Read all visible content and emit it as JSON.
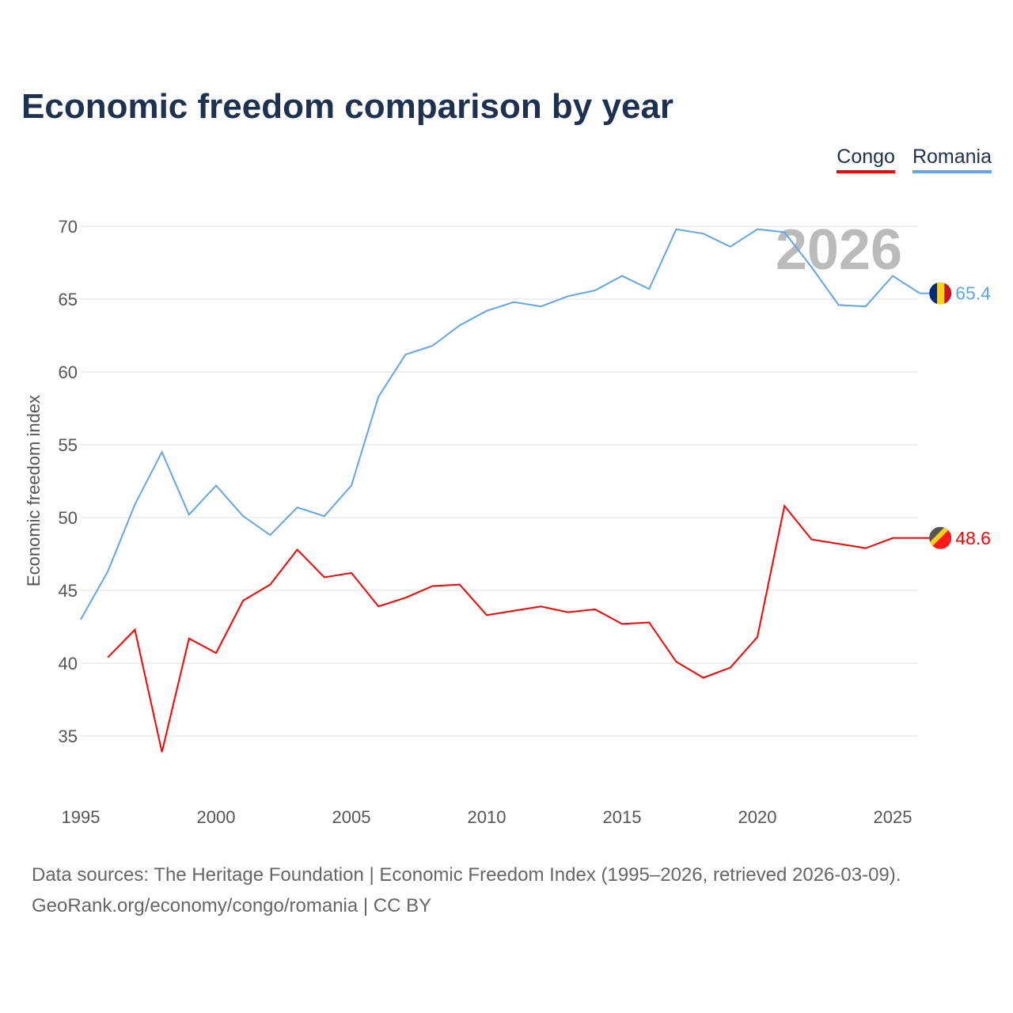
{
  "title": "Economic freedom comparison by year",
  "watermark_year": "2026",
  "footer": {
    "line1": "Data sources: The Heritage Foundation | Economic Freedom Index (1995–2026, retrieved 2026-03-09).",
    "line2": "GeoRank.org/economy/congo/romania | CC BY"
  },
  "chart_data": {
    "type": "line",
    "title": "Economic freedom comparison by year",
    "xlabel": "",
    "ylabel": "Economic freedom index",
    "xlim": [
      1995,
      2026
    ],
    "ylim": [
      32,
      72
    ],
    "x_ticks": [
      1995,
      2000,
      2005,
      2010,
      2015,
      2020,
      2025
    ],
    "y_ticks": [
      35,
      40,
      45,
      50,
      55,
      60,
      65,
      70
    ],
    "grid": true,
    "legend_position": "top-right",
    "x": [
      1995,
      1996,
      1997,
      1998,
      1999,
      2000,
      2001,
      2002,
      2003,
      2004,
      2005,
      2006,
      2007,
      2008,
      2009,
      2010,
      2011,
      2012,
      2013,
      2014,
      2015,
      2016,
      2017,
      2018,
      2019,
      2020,
      2021,
      2022,
      2023,
      2024,
      2025,
      2026
    ],
    "series": [
      {
        "name": "Congo",
        "color": "#ff0000",
        "end_label": "48.6",
        "values": [
          null,
          40.4,
          42.3,
          33.9,
          41.7,
          40.7,
          44.3,
          45.4,
          47.8,
          45.9,
          46.2,
          43.9,
          44.5,
          45.3,
          45.4,
          43.3,
          43.6,
          43.9,
          43.5,
          43.7,
          42.7,
          42.8,
          40.1,
          39.0,
          39.7,
          41.8,
          50.8,
          48.5,
          48.2,
          47.9,
          48.6,
          48.6
        ]
      },
      {
        "name": "Romania",
        "color": "#62a6ea",
        "end_label": "65.4",
        "values": [
          43.0,
          46.3,
          50.9,
          54.5,
          50.2,
          52.2,
          50.1,
          48.8,
          50.7,
          50.1,
          52.2,
          58.3,
          61.2,
          61.8,
          63.2,
          64.2,
          64.8,
          64.5,
          65.2,
          65.6,
          66.6,
          65.7,
          69.8,
          69.5,
          68.6,
          69.8,
          69.6,
          67.2,
          64.6,
          64.5,
          66.6,
          65.4
        ]
      }
    ]
  }
}
